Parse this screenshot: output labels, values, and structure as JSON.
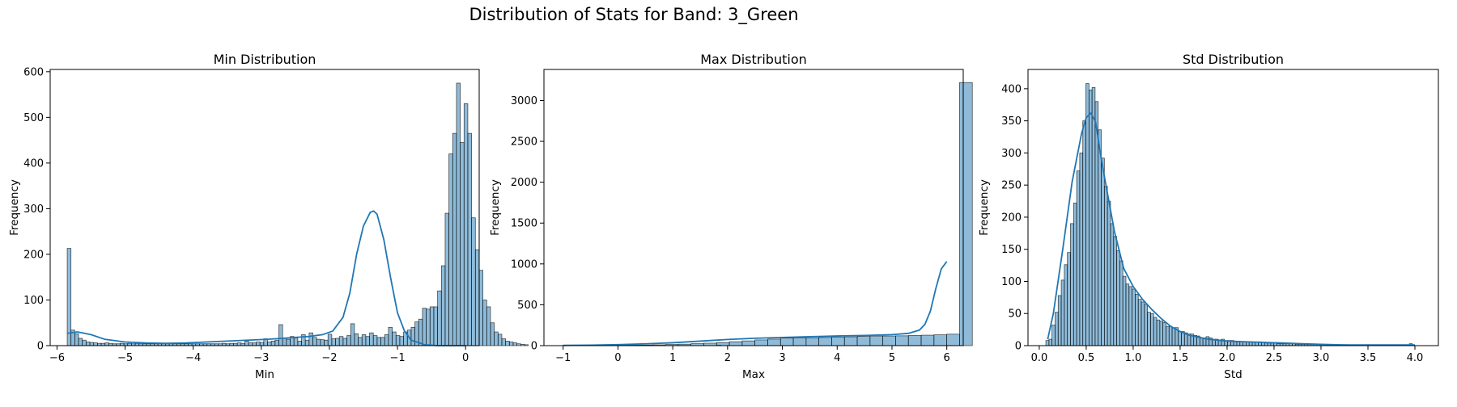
{
  "figure": {
    "suptitle": "Distribution of Stats for Band: 3_Green"
  },
  "chart_data": [
    {
      "type": "bar",
      "title": "Min Distribution",
      "xlabel": "Min",
      "ylabel": "Frequency",
      "xlim": [
        -6.1,
        0.2
      ],
      "ylim": [
        0,
        605
      ],
      "xticks": [
        -6,
        -5,
        -4,
        -3,
        -2,
        -1,
        0
      ],
      "yticks": [
        0,
        100,
        200,
        300,
        400,
        500,
        600
      ],
      "grid": false,
      "bin_start": -5.85,
      "bin_width": 0.0555,
      "values": [
        213,
        34,
        26,
        16,
        12,
        8,
        7,
        6,
        5,
        5,
        6,
        5,
        4,
        4,
        5,
        4,
        5,
        4,
        5,
        4,
        4,
        4,
        4,
        4,
        4,
        4,
        4,
        4,
        4,
        4,
        4,
        4,
        4,
        4,
        4,
        4,
        4,
        4,
        4,
        4,
        4,
        5,
        4,
        5,
        5,
        6,
        5,
        10,
        6,
        6,
        8,
        7,
        15,
        8,
        10,
        12,
        46,
        16,
        14,
        20,
        17,
        10,
        24,
        12,
        28,
        18,
        14,
        13,
        12,
        25,
        15,
        16,
        20,
        16,
        22,
        48,
        26,
        18,
        24,
        20,
        28,
        22,
        18,
        18,
        24,
        40,
        30,
        22,
        20,
        30,
        34,
        40,
        52,
        58,
        82,
        80,
        85,
        85,
        120,
        175,
        290,
        420,
        465,
        575,
        445,
        530,
        465,
        280,
        210,
        165,
        100,
        85,
        50,
        30,
        25,
        15,
        10,
        8,
        6,
        4,
        3,
        2,
        0,
        0,
        0,
        0,
        0,
        0,
        0,
        0,
        0,
        0,
        0,
        0,
        0,
        0,
        0,
        0,
        0,
        0,
        0,
        0,
        0,
        0,
        0,
        0,
        0,
        0,
        0,
        0,
        0,
        0,
        0,
        0,
        0,
        0,
        0,
        0,
        0,
        0,
        0,
        0,
        0,
        0,
        0,
        0,
        0,
        0,
        0,
        0,
        0,
        0,
        1
      ],
      "kde": {
        "x": [
          -5.85,
          -5.7,
          -5.5,
          -5.3,
          -5.0,
          -4.7,
          -4.4,
          -4.1,
          -3.8,
          -3.5,
          -3.2,
          -2.9,
          -2.6,
          -2.3,
          -2.1,
          -1.95,
          -1.8,
          -1.7,
          -1.6,
          -1.5,
          -1.4,
          -1.35,
          -1.3,
          -1.2,
          -1.1,
          -1.0,
          -0.9,
          -0.8,
          -0.6,
          -0.4,
          -0.2,
          0.0
        ],
        "y": [
          27,
          30,
          24,
          14,
          8,
          6,
          5,
          6,
          8,
          10,
          12,
          14,
          17,
          20,
          24,
          32,
          62,
          115,
          200,
          262,
          292,
          295,
          288,
          232,
          148,
          72,
          33,
          12,
          2,
          0,
          0,
          0
        ]
      }
    },
    {
      "type": "bar",
      "title": "Max Distribution",
      "xlabel": "Max",
      "ylabel": "Frequency",
      "xlim": [
        -1.35,
        6.3
      ],
      "ylim": [
        0,
        3380
      ],
      "xticks": [
        -1,
        0,
        1,
        2,
        3,
        4,
        5,
        6
      ],
      "yticks": [
        0,
        500,
        1000,
        1500,
        2000,
        2500,
        3000
      ],
      "grid": false,
      "bin_start": -1.0,
      "bin_width": 0.2333,
      "values": [
        2,
        2,
        3,
        3,
        4,
        6,
        8,
        10,
        14,
        18,
        24,
        30,
        38,
        48,
        58,
        70,
        80,
        92,
        94,
        96,
        100,
        104,
        108,
        112,
        118,
        118,
        120,
        124,
        128,
        132,
        140,
        3220
      ],
      "kde": {
        "x": [
          -1.0,
          -0.5,
          0.0,
          0.5,
          1.0,
          1.5,
          2.0,
          2.5,
          3.0,
          3.5,
          4.0,
          4.5,
          5.0,
          5.3,
          5.5,
          5.6,
          5.7,
          5.8,
          5.9,
          6.0
        ],
        "y": [
          3,
          6,
          12,
          22,
          35,
          55,
          75,
          90,
          100,
          110,
          118,
          125,
          135,
          150,
          190,
          260,
          420,
          700,
          940,
          1030
        ]
      }
    },
    {
      "type": "bar",
      "title": "Std Distribution",
      "xlabel": "Std",
      "ylabel": "Frequency",
      "xlim": [
        -0.12,
        4.25
      ],
      "ylim": [
        0,
        430
      ],
      "xticks": [
        0.0,
        0.5,
        1.0,
        1.5,
        2.0,
        2.5,
        3.0,
        3.5,
        4.0
      ],
      "yticks": [
        0,
        50,
        100,
        150,
        200,
        250,
        300,
        350,
        400
      ],
      "grid": false,
      "bin_start": 0.07,
      "bin_width": 0.0328,
      "values": [
        8,
        10,
        32,
        52,
        78,
        102,
        126,
        145,
        190,
        222,
        272,
        300,
        350,
        408,
        398,
        402,
        380,
        336,
        292,
        248,
        225,
        190,
        170,
        148,
        132,
        108,
        96,
        92,
        88,
        80,
        72,
        68,
        64,
        52,
        50,
        44,
        40,
        38,
        36,
        30,
        30,
        28,
        28,
        22,
        22,
        20,
        18,
        18,
        16,
        15,
        12,
        12,
        14,
        12,
        10,
        10,
        9,
        10,
        8,
        8,
        8,
        7,
        7,
        6,
        6,
        6,
        6,
        5,
        5,
        6,
        5,
        4,
        4,
        4,
        4,
        3,
        3,
        3,
        3,
        3,
        3,
        2,
        2,
        2,
        2,
        2,
        2,
        2,
        2,
        2,
        2,
        1,
        1,
        1,
        1,
        1,
        1,
        1,
        1,
        1,
        1,
        1,
        1,
        1,
        1,
        1,
        1,
        1,
        1,
        1,
        1,
        1,
        1,
        1,
        1,
        1,
        1,
        1,
        3
      ],
      "kde": {
        "x": [
          0.09,
          0.15,
          0.25,
          0.35,
          0.45,
          0.5,
          0.55,
          0.6,
          0.65,
          0.7,
          0.8,
          0.9,
          1.0,
          1.1,
          1.2,
          1.3,
          1.4,
          1.5,
          1.6,
          1.8,
          2.0,
          2.2,
          2.4,
          2.6,
          2.8,
          3.0,
          3.3,
          3.6,
          3.8,
          4.0
        ],
        "y": [
          10,
          50,
          150,
          255,
          330,
          355,
          362,
          348,
          300,
          258,
          178,
          120,
          92,
          72,
          56,
          42,
          30,
          22,
          16,
          10,
          7,
          6,
          5,
          4,
          3,
          2,
          1,
          1,
          1,
          1
        ]
      }
    }
  ]
}
